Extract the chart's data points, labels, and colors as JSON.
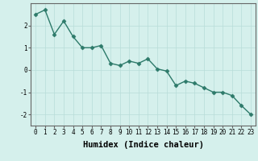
{
  "xlabel": "Humidex (Indice chaleur)",
  "x": [
    0,
    1,
    2,
    3,
    4,
    5,
    6,
    7,
    8,
    9,
    10,
    11,
    12,
    13,
    14,
    15,
    16,
    17,
    18,
    19,
    20,
    21,
    22,
    23
  ],
  "y": [
    2.5,
    2.7,
    1.6,
    2.2,
    1.5,
    1.0,
    1.0,
    1.1,
    0.3,
    0.2,
    0.4,
    0.3,
    0.5,
    0.05,
    -0.05,
    -0.7,
    -0.5,
    -0.6,
    -0.8,
    -1.0,
    -1.0,
    -1.15,
    -1.6,
    -2.0
  ],
  "line_color": "#2d7a6a",
  "marker": "D",
  "marker_size": 2.5,
  "linewidth": 1.0,
  "background_color": "#d5f0ec",
  "grid_color": "#b8ddd8",
  "ylim": [
    -2.5,
    3.0
  ],
  "xlim": [
    -0.5,
    23.5
  ],
  "yticks": [
    -2,
    -1,
    0,
    1,
    2
  ],
  "xticks": [
    0,
    1,
    2,
    3,
    4,
    5,
    6,
    7,
    8,
    9,
    10,
    11,
    12,
    13,
    14,
    15,
    16,
    17,
    18,
    19,
    20,
    21,
    22,
    23
  ],
  "tick_fontsize": 5.5,
  "xlabel_fontsize": 7.5,
  "spine_color": "#666666"
}
